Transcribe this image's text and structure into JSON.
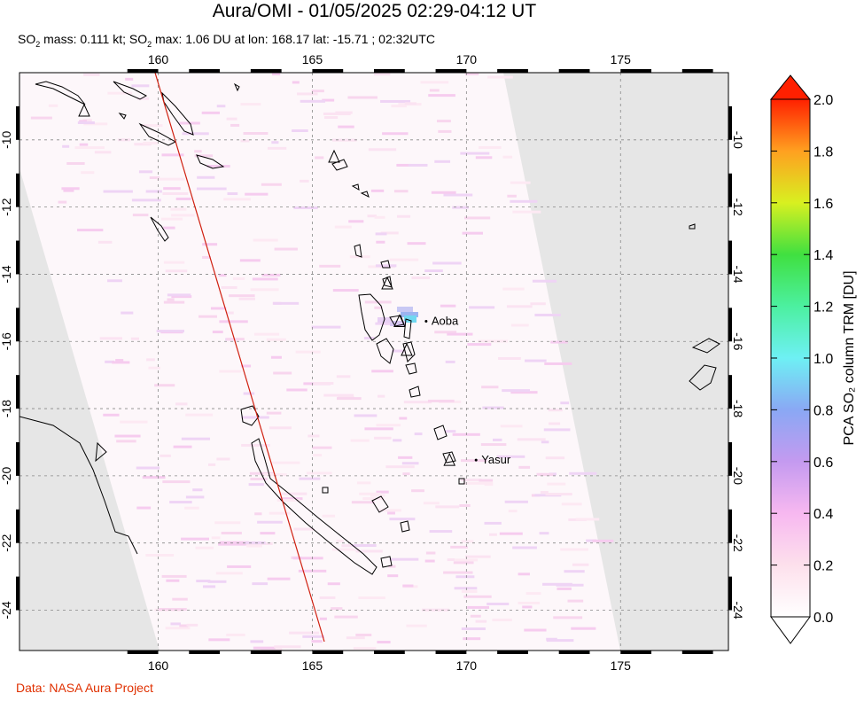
{
  "header": {
    "title": "Aura/OMI - 01/05/2025 02:29-04:12 UT",
    "subtitle_prefix": "SO",
    "subtitle_sub": "2",
    "subtitle_mid": " mass: 0.111 kt; SO",
    "subtitle_sub2": "2",
    "subtitle_rest": " max: 1.06 DU at lon: 168.17 lat: -15.71 ; 02:32UTC"
  },
  "credit": "Data: NASA Aura Project",
  "map": {
    "lon_range": [
      155.5,
      178.5
    ],
    "lat_range": [
      -25.2,
      -8.0
    ],
    "lon_ticks": [
      "160",
      "165",
      "170",
      "175"
    ],
    "lat_ticks": [
      "-10",
      "-12",
      "-14",
      "-16",
      "-18",
      "-20",
      "-22",
      "-24"
    ],
    "volcanoes": [
      {
        "name": "Aoba",
        "lon": 167.83,
        "lat": -15.4
      },
      {
        "name": "Yasur",
        "lon": 169.45,
        "lat": -19.53
      }
    ],
    "colors": {
      "no_data": "#e6e6e6",
      "swath": "#fdf7fa",
      "grid": "#888888",
      "orbit_line": "#d02010"
    }
  },
  "colorbar": {
    "label": "PCA SO₂ column TRM [DU]",
    "ticks": [
      "0.0",
      "0.2",
      "0.4",
      "0.6",
      "0.8",
      "1.0",
      "1.2",
      "1.4",
      "1.6",
      "1.8",
      "2.0"
    ],
    "range": [
      0.0,
      2.0
    ]
  }
}
